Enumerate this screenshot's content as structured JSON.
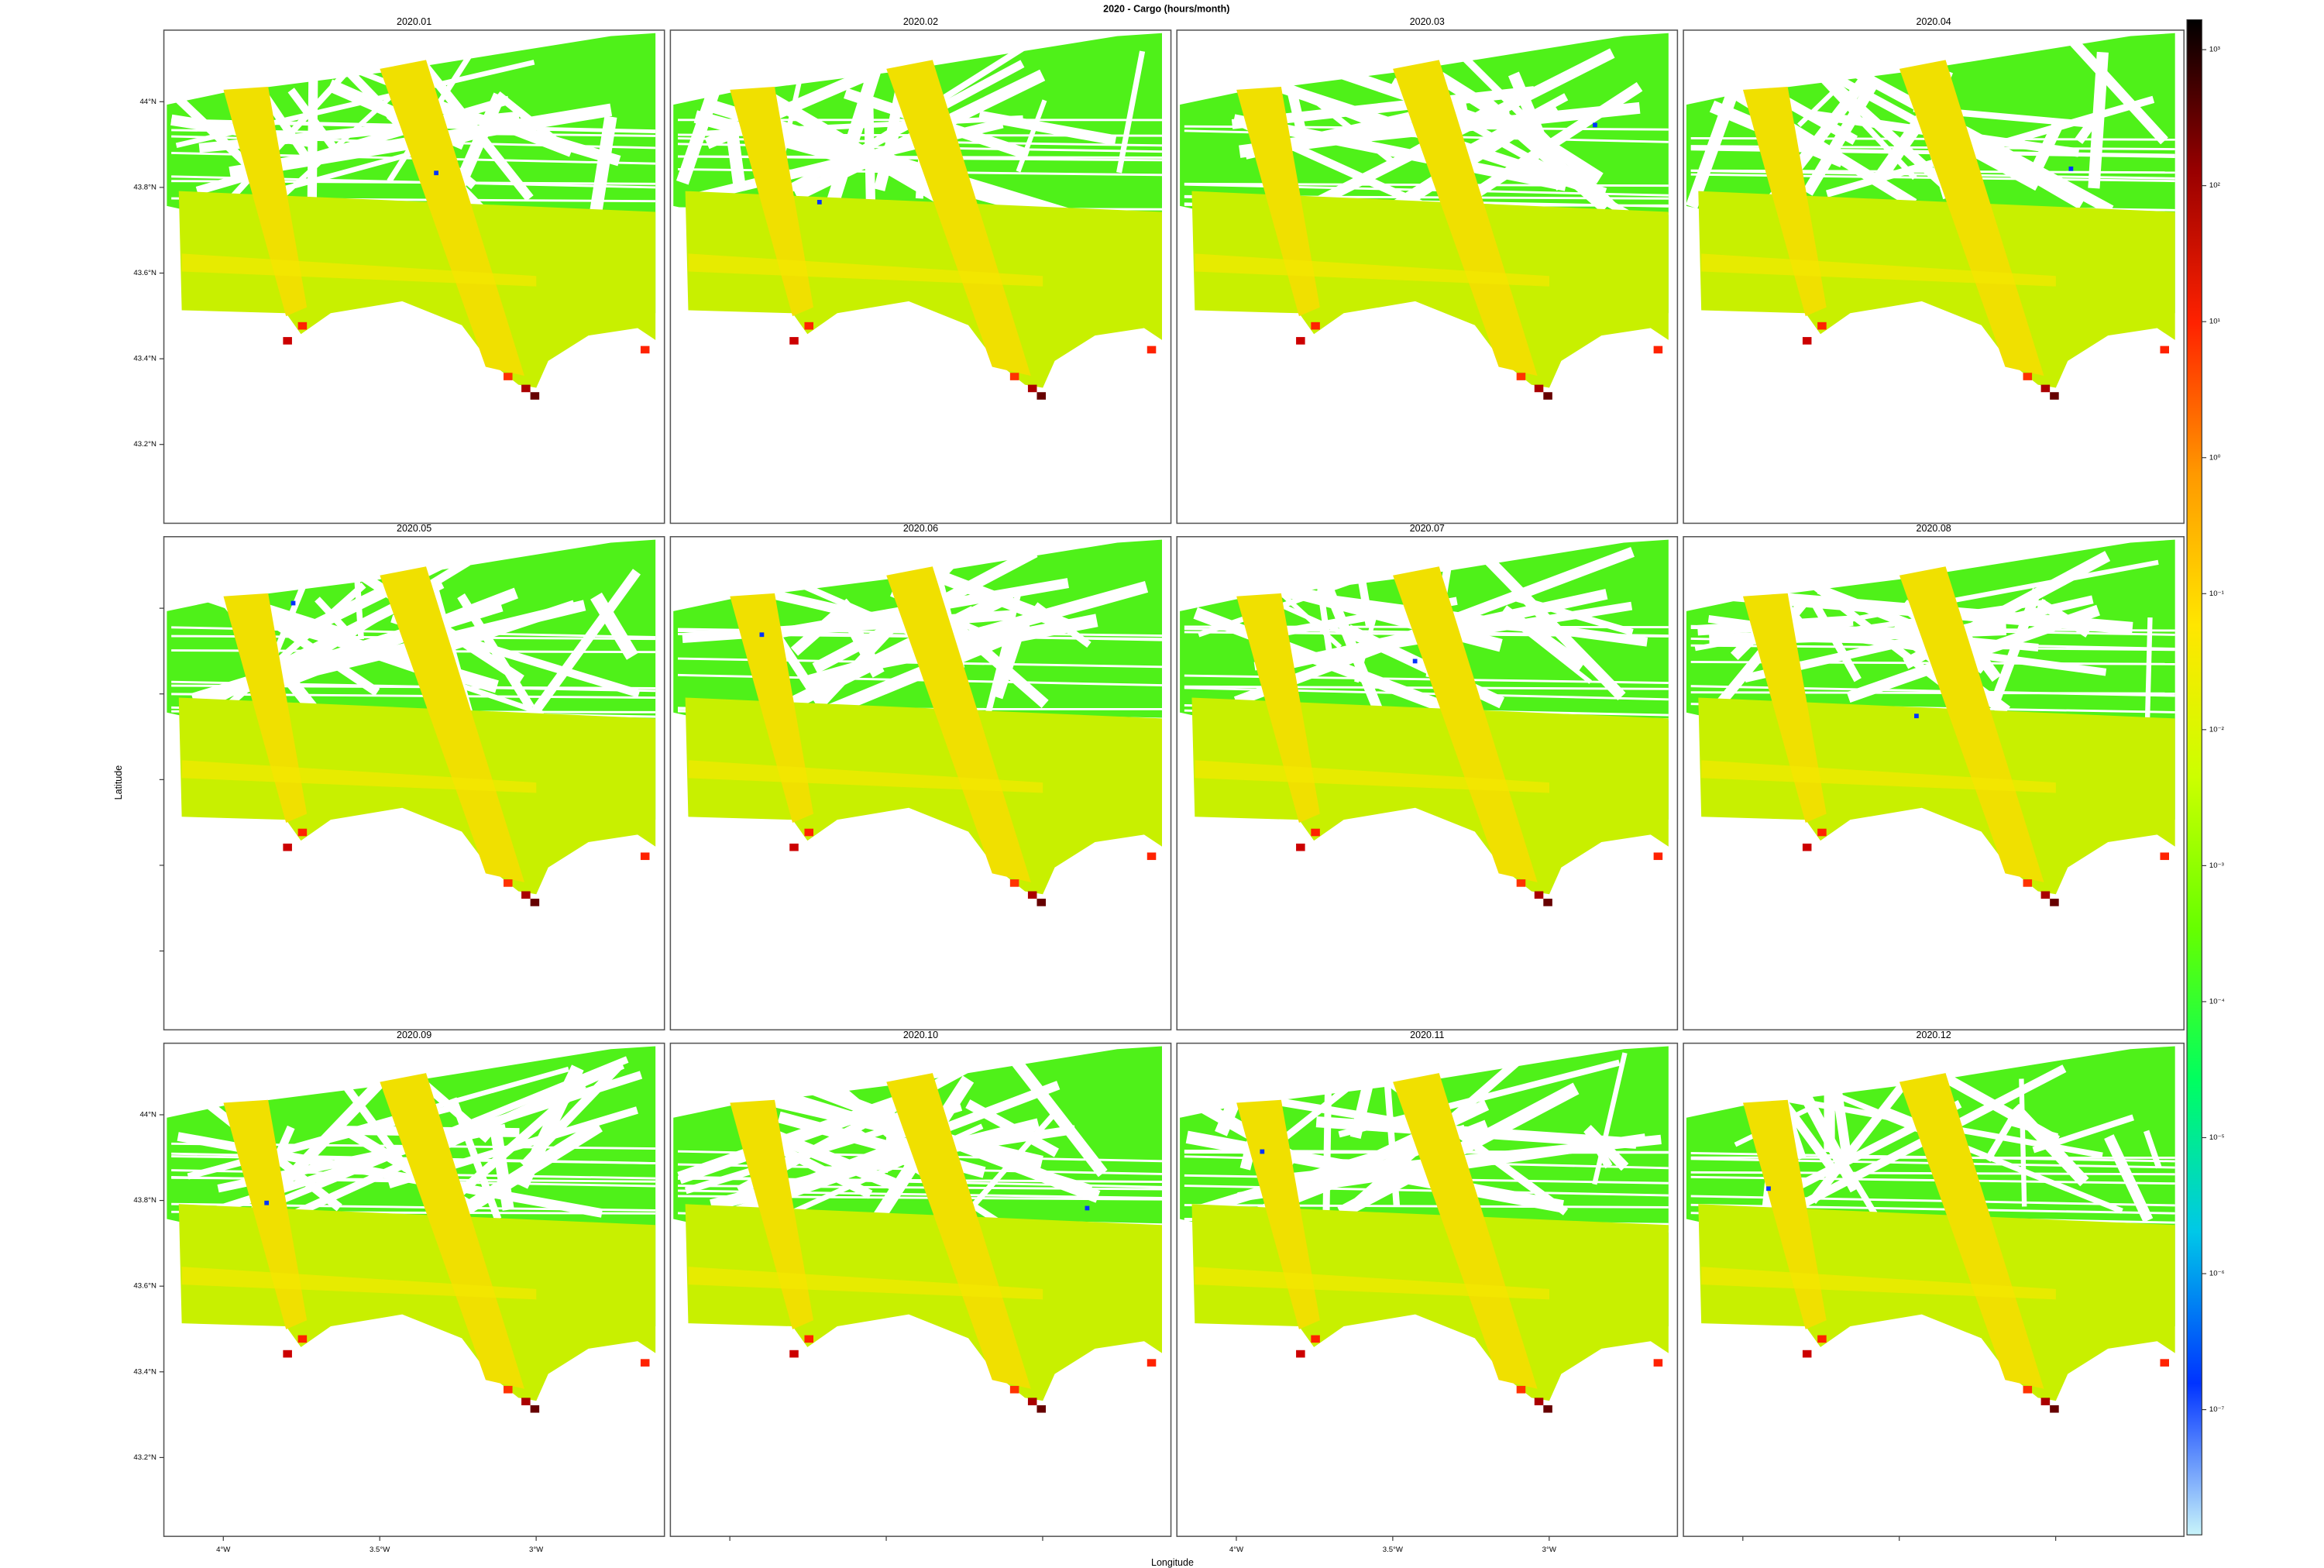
{
  "chart_data": {
    "type": "map-panels",
    "title": "2020 - Cargo (hours/month)",
    "x_label": "Longitude",
    "y_label": "Latitude",
    "panels": [
      "2020.01",
      "2020.02",
      "2020.03",
      "2020.04",
      "2020.05",
      "2020.06",
      "2020.07",
      "2020.08",
      "2020.09",
      "2020.10",
      "2020.11",
      "2020.12"
    ],
    "xlim": [
      -4.19,
      -2.59
    ],
    "ylim": [
      43.016,
      44.167
    ],
    "xticks": [
      {
        "value": -4,
        "label": "4°W"
      },
      {
        "value": -3.5,
        "label": "3.5°W"
      },
      {
        "value": -3,
        "label": "3°W"
      }
    ],
    "yticks": [
      {
        "value": 43.2,
        "label": "43.2°N"
      },
      {
        "value": 43.4,
        "label": "43.4°N"
      },
      {
        "value": 43.6,
        "label": "43.6°N"
      },
      {
        "value": 43.8,
        "label": "43.8°N"
      },
      {
        "value": 44,
        "label": "44°N"
      }
    ],
    "colorbar": {
      "log": true,
      "lim": [
        1.2e-08,
        1660
      ],
      "colors": [
        "#c8f4fa",
        "#0033ff",
        "#00c8e8",
        "#00ff60",
        "#66ff00",
        "#ccff00",
        "#ffe600",
        "#ff9900",
        "#ff2200",
        "#990000",
        "#000000"
      ],
      "ticks": [
        {
          "value": 1000,
          "label": "10³"
        },
        {
          "value": 100,
          "label": "10²"
        },
        {
          "value": 10,
          "label": "10¹"
        },
        {
          "value": 1,
          "label": "10⁰"
        },
        {
          "value": 0.1,
          "label": "10⁻¹"
        },
        {
          "value": 0.01,
          "label": "10⁻²"
        },
        {
          "value": 0.001,
          "label": "10⁻³"
        },
        {
          "value": 0.0001,
          "label": "10⁻⁴"
        },
        {
          "value": 1e-05,
          "label": "10⁻⁵"
        },
        {
          "value": 1e-06,
          "label": "10⁻⁶"
        },
        {
          "value": 1e-07,
          "label": "10⁻⁷"
        }
      ]
    }
  }
}
